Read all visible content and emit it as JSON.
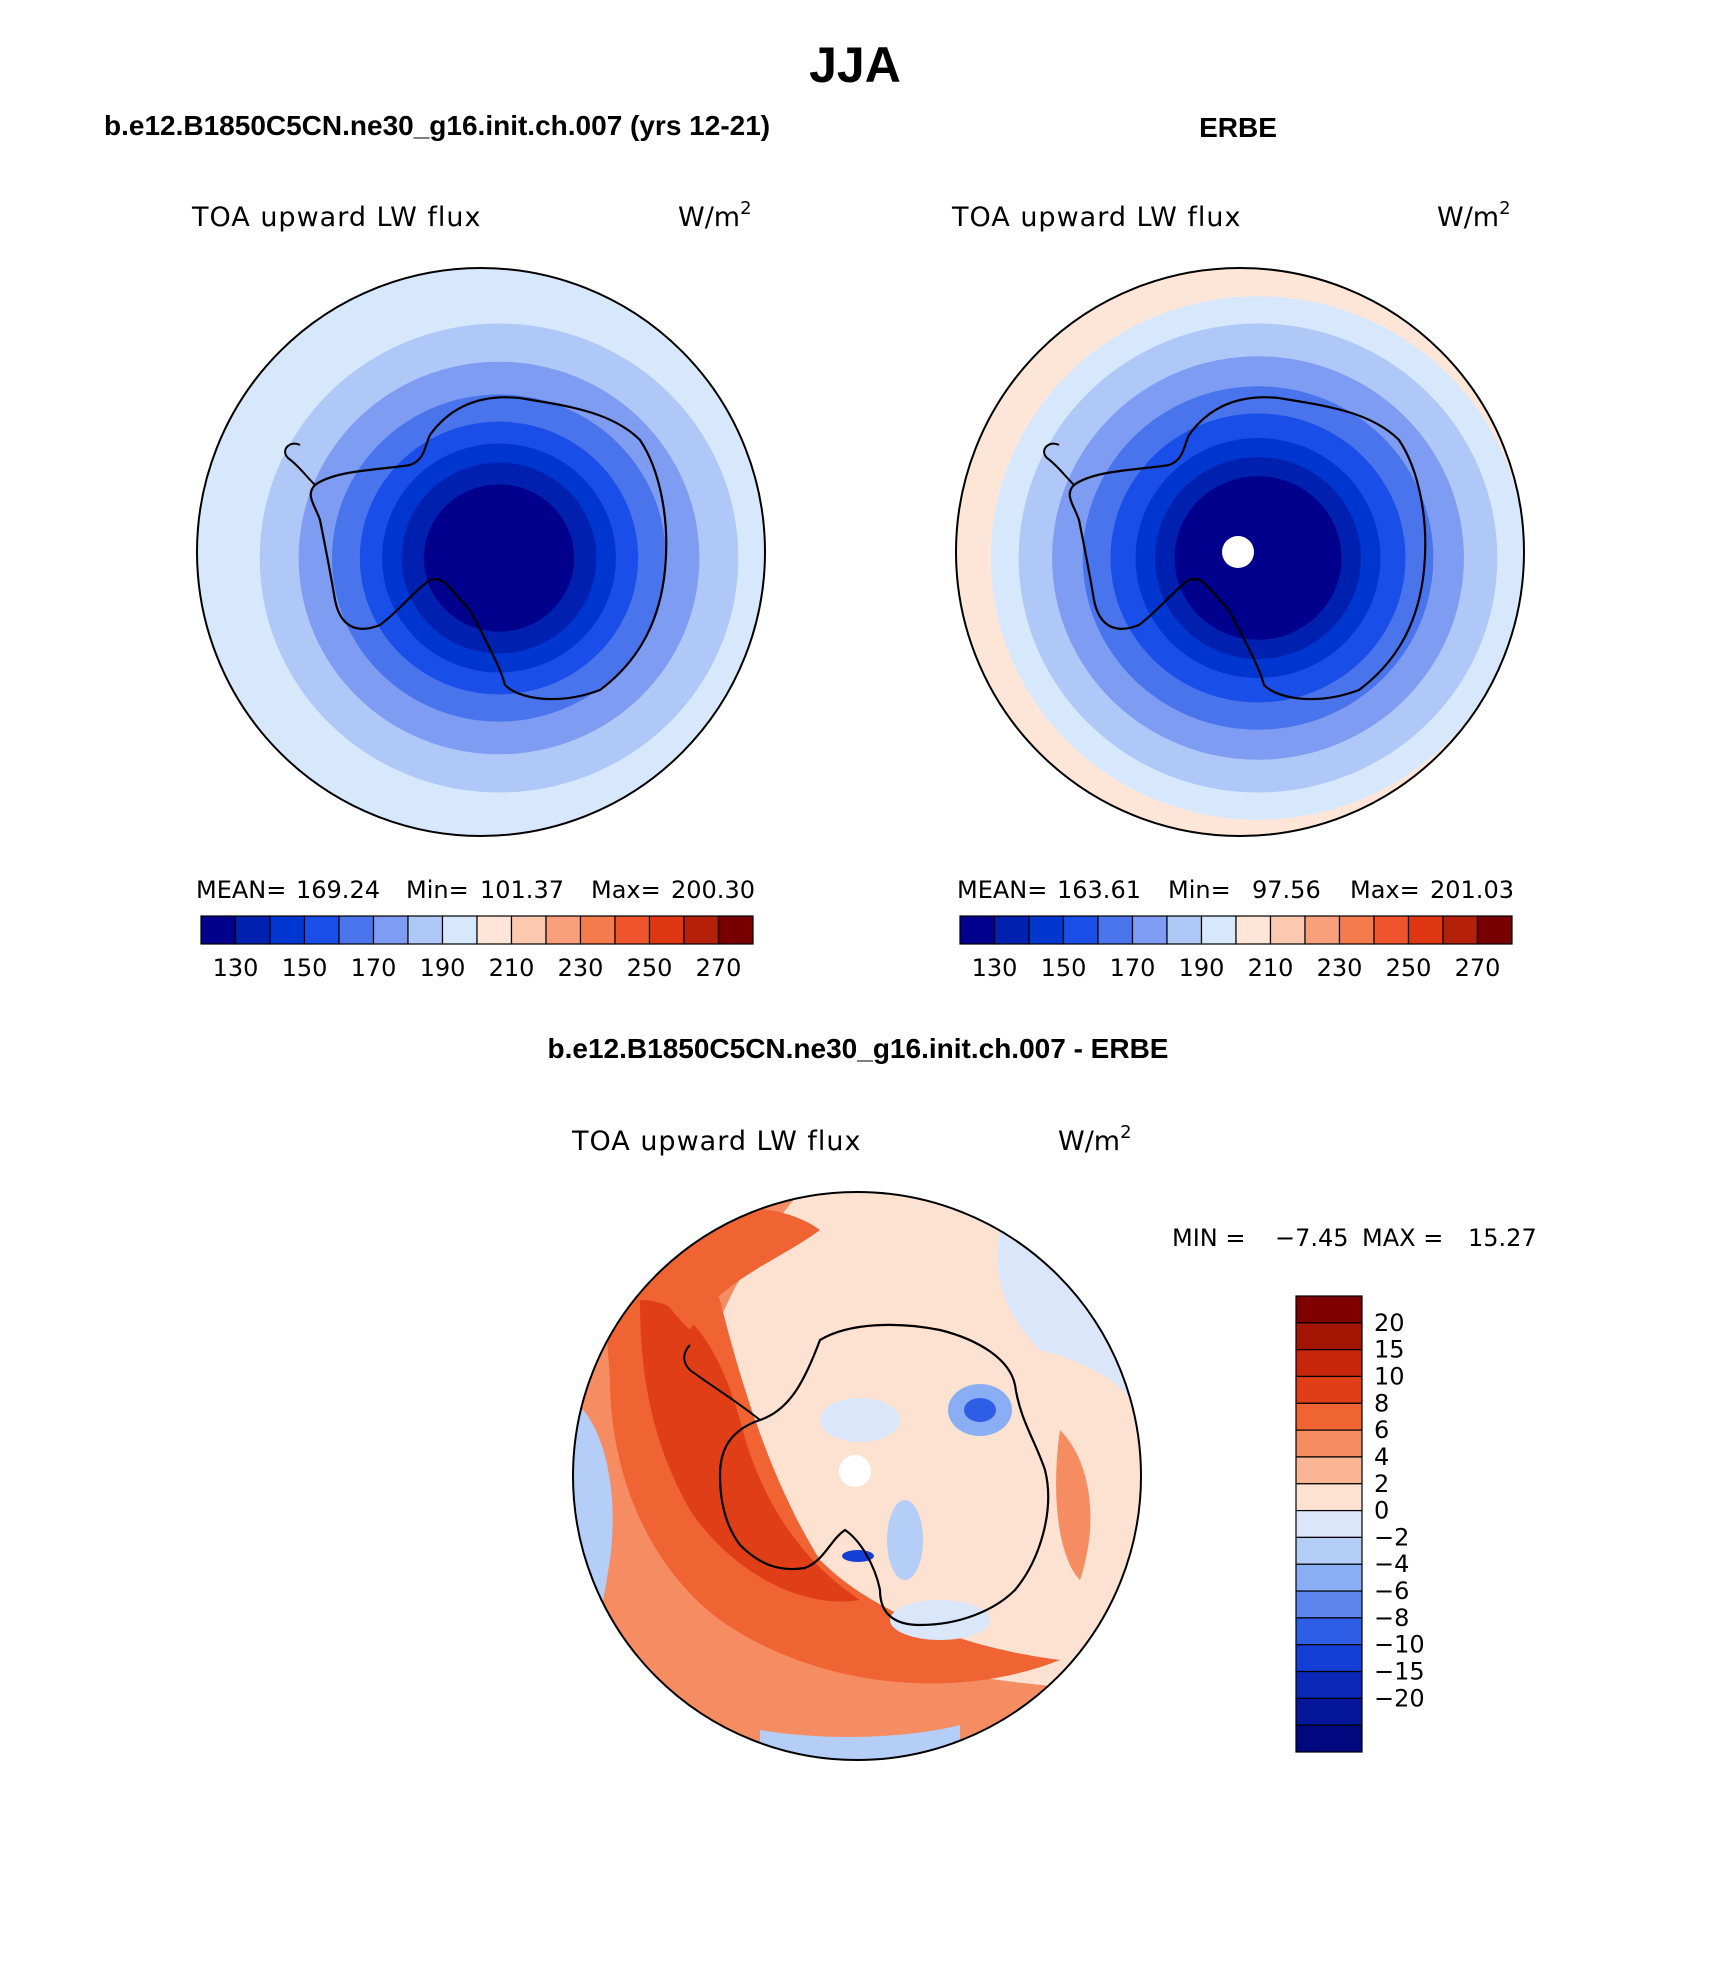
{
  "season": "JJA",
  "colors": {
    "scale16": [
      "#00008c",
      "#0020b0",
      "#0036d0",
      "#1a4ee8",
      "#4a74ec",
      "#7e9cf2",
      "#b0c8f8",
      "#d8e8fc",
      "#fde6d8",
      "#fcc8b0",
      "#f8a07c",
      "#f47c4c",
      "#f0542c",
      "#de3612",
      "#b42008",
      "#780000"
    ],
    "diff18": [
      "#800000",
      "#a41402",
      "#c8260a",
      "#e03e16",
      "#f06434",
      "#f58c62",
      "#fab694",
      "#fde2d2",
      "#dae6fa",
      "#b4cef8",
      "#8aaef4",
      "#5c86ee",
      "#2e5ee6",
      "#143ed6",
      "#0a28b8",
      "#04169a",
      "#000880"
    ],
    "outline": "#000000"
  },
  "panels": [
    {
      "title": "b.e12.B1850C5CN.ne30_g16.init.ch.007 (yrs 12-21)",
      "variable": "TOA upward LW flux",
      "units": "W/m",
      "units_exp": "2",
      "stats": {
        "mean_label": "MEAN=",
        "mean": "169.24",
        "min_label": "Min=",
        "min": "101.37",
        "max_label": "Max=",
        "max": "200.30"
      },
      "rings": [
        {
          "r": 1.0,
          "level": 7
        },
        {
          "r": 0.86,
          "level": 6
        },
        {
          "r": 0.72,
          "level": 5
        },
        {
          "r": 0.6,
          "level": 4
        },
        {
          "r": 0.5,
          "level": 3
        },
        {
          "r": 0.42,
          "level": 2
        },
        {
          "r": 0.35,
          "level": 1
        },
        {
          "r": 0.27,
          "level": 0
        }
      ]
    },
    {
      "title": "ERBE",
      "variable": "TOA upward LW flux",
      "units": "W/m",
      "units_exp": "2",
      "stats": {
        "mean_label": "MEAN=",
        "mean": "163.61",
        "min_label": "Min=",
        "min": "97.56",
        "max_label": "Max=",
        "max": "201.03"
      },
      "rings": [
        {
          "r": 1.0,
          "level": 8
        },
        {
          "r": 0.96,
          "level": 7
        },
        {
          "r": 0.86,
          "level": 6
        },
        {
          "r": 0.74,
          "level": 5
        },
        {
          "r": 0.63,
          "level": 4
        },
        {
          "r": 0.53,
          "level": 3
        },
        {
          "r": 0.44,
          "level": 2
        },
        {
          "r": 0.37,
          "level": 1
        },
        {
          "r": 0.3,
          "level": 0
        }
      ]
    }
  ],
  "colorbar": {
    "ticks": [
      "130",
      "150",
      "170",
      "190",
      "210",
      "230",
      "250",
      "270"
    ]
  },
  "diff": {
    "title": "b.e12.B1850C5CN.ne30_g16.init.ch.007 - ERBE",
    "variable": "TOA upward LW flux",
    "units": "W/m",
    "units_exp": "2",
    "min_label": "MIN =",
    "min": "−7.45",
    "max_label": "MAX =",
    "max": "15.27",
    "ticks": [
      "20",
      "15",
      "10",
      "8",
      "6",
      "4",
      "2",
      "0",
      "−2",
      "−4",
      "−6",
      "−8",
      "−10",
      "−15",
      "−20"
    ]
  }
}
